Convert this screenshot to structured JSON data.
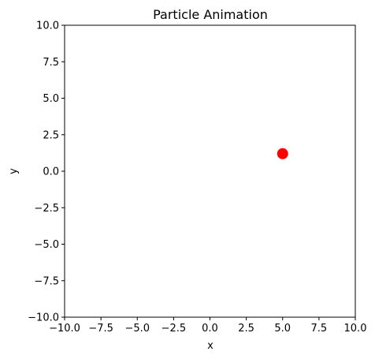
{
  "chart_data": {
    "type": "scatter",
    "title": "Particle Animation",
    "xlabel": "x",
    "ylabel": "y",
    "xlim": [
      -10,
      10
    ],
    "ylim": [
      -10,
      10
    ],
    "xticks": [
      -10.0,
      -7.5,
      -5.0,
      -2.5,
      0.0,
      2.5,
      5.0,
      7.5,
      10.0
    ],
    "yticks": [
      -10.0,
      -7.5,
      -5.0,
      -2.5,
      0.0,
      2.5,
      5.0,
      7.5,
      10.0
    ],
    "xtick_labels": [
      "−10.0",
      "−7.5",
      "−5.0",
      "−2.5",
      "0.0",
      "2.5",
      "5.0",
      "7.5",
      "10.0"
    ],
    "ytick_labels": [
      "−10.0",
      "−7.5",
      "−5.0",
      "−2.5",
      "0.0",
      "2.5",
      "5.0",
      "7.5",
      "10.0"
    ],
    "grid": false,
    "points": [
      {
        "x": 5.0,
        "y": 1.2,
        "color": "#ff0000"
      }
    ]
  }
}
